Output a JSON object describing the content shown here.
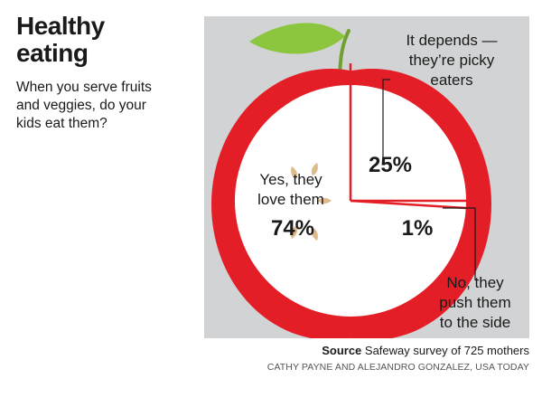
{
  "header": {
    "title_line1": "Healthy",
    "title_line2": "eating",
    "subtitle_line1": "When you serve fruits",
    "subtitle_line2": "and veggies, do your",
    "subtitle_line3": "kids eat them?"
  },
  "chart_data": {
    "type": "pie",
    "title": "Healthy eating",
    "categories": [
      "Yes, they love them",
      "It depends — they’re picky eaters",
      "No, they push them to the side"
    ],
    "values": [
      74,
      25,
      1
    ],
    "value_labels": [
      "74%",
      "25%",
      "1%"
    ],
    "label_lines": {
      "yes": [
        "Yes, they",
        "love them"
      ],
      "depends": [
        "It depends —",
        "they’re picky",
        "eaters"
      ],
      "no": [
        "No, they",
        "push them",
        "to the side"
      ]
    },
    "colors": {
      "apple": "#e41e26",
      "flesh": "#ffffff",
      "leaf": "#8cc63f",
      "stem": "#6fa030",
      "seeds": "#ddbb8c",
      "background": "#d1d3d4",
      "divider": "#e41e26"
    }
  },
  "footer": {
    "source_label": "Source",
    "source_text": "Safeway survey of 725 mothers",
    "credit": "CATHY PAYNE AND ALEJANDRO GONZALEZ, USA TODAY"
  }
}
